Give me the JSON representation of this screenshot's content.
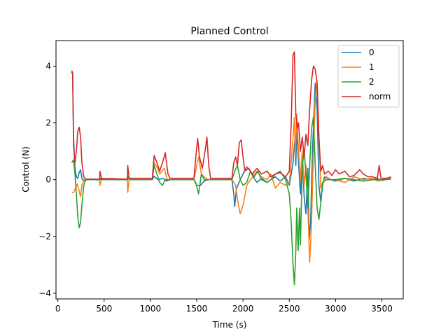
{
  "chart_data": {
    "type": "line",
    "title": "Planned Control",
    "xlabel": "Time (s)",
    "ylabel": "Control (N)",
    "xlim": [
      -20,
      3730
    ],
    "ylim": [
      -4.2,
      4.9
    ],
    "xticks": [
      0,
      500,
      1000,
      1500,
      2000,
      2500,
      3000,
      3500
    ],
    "yticks": [
      -4,
      -2,
      0,
      2,
      4
    ],
    "ytick_labels": [
      "−4",
      "−2",
      "0",
      "2",
      "4"
    ],
    "grid": false,
    "legend_position": "top-right",
    "series": [
      {
        "name": "0",
        "color": "#1f77b4",
        "points": [
          [
            150,
            3.8
          ],
          [
            160,
            3.7
          ],
          [
            170,
            1.5
          ],
          [
            185,
            0.4
          ],
          [
            200,
            0.1
          ],
          [
            215,
            0.05
          ],
          [
            230,
            0.25
          ],
          [
            245,
            0.35
          ],
          [
            260,
            0.05
          ],
          [
            280,
            -0.05
          ],
          [
            320,
            0.02
          ],
          [
            450,
            0.0
          ],
          [
            460,
            0.05
          ],
          [
            480,
            0.0
          ],
          [
            750,
            0.0
          ],
          [
            760,
            0.08
          ],
          [
            770,
            0.0
          ],
          [
            1020,
            0.0
          ],
          [
            1040,
            0.12
          ],
          [
            1080,
            0.0
          ],
          [
            1140,
            0.05
          ],
          [
            1170,
            -0.05
          ],
          [
            1210,
            0.0
          ],
          [
            1470,
            0.0
          ],
          [
            1500,
            -0.2
          ],
          [
            1540,
            -0.2
          ],
          [
            1580,
            -0.05
          ],
          [
            1620,
            0.0
          ],
          [
            1880,
            0.0
          ],
          [
            1900,
            -0.5
          ],
          [
            1910,
            -0.95
          ],
          [
            1930,
            -0.3
          ],
          [
            1970,
            0.0
          ],
          [
            2000,
            0.2
          ],
          [
            2040,
            0.45
          ],
          [
            2080,
            0.3
          ],
          [
            2110,
            0.1
          ],
          [
            2150,
            -0.1
          ],
          [
            2200,
            0.05
          ],
          [
            2260,
            -0.1
          ],
          [
            2300,
            0.0
          ],
          [
            2350,
            0.1
          ],
          [
            2400,
            -0.05
          ],
          [
            2460,
            0.1
          ],
          [
            2500,
            -0.2
          ],
          [
            2520,
            0.2
          ],
          [
            2540,
            0.6
          ],
          [
            2560,
            1.4
          ],
          [
            2570,
            0.5
          ],
          [
            2580,
            1.8
          ],
          [
            2600,
            0.6
          ],
          [
            2620,
            -0.5
          ],
          [
            2640,
            0.8
          ],
          [
            2660,
            -0.6
          ],
          [
            2680,
            -1.2
          ],
          [
            2700,
            0.4
          ],
          [
            2715,
            -2.1
          ],
          [
            2730,
            -1.5
          ],
          [
            2750,
            1.0
          ],
          [
            2780,
            3.4
          ],
          [
            2800,
            2.5
          ],
          [
            2820,
            -0.2
          ],
          [
            2840,
            -0.8
          ],
          [
            2860,
            -0.2
          ],
          [
            2880,
            0.1
          ],
          [
            2950,
            0.0
          ],
          [
            3000,
            -0.05
          ],
          [
            3100,
            0.05
          ],
          [
            3200,
            -0.05
          ],
          [
            3300,
            0.05
          ],
          [
            3400,
            0.0
          ],
          [
            3450,
            0.05
          ],
          [
            3500,
            -0.03
          ],
          [
            3600,
            0.05
          ]
        ]
      },
      {
        "name": "1",
        "color": "#ff7f0e",
        "points": [
          [
            150,
            -0.45
          ],
          [
            170,
            -0.45
          ],
          [
            190,
            -0.3
          ],
          [
            210,
            -0.15
          ],
          [
            230,
            -0.4
          ],
          [
            245,
            -0.6
          ],
          [
            260,
            -0.2
          ],
          [
            280,
            0.0
          ],
          [
            320,
            0.0
          ],
          [
            450,
            0.0
          ],
          [
            455,
            -0.2
          ],
          [
            470,
            0.0
          ],
          [
            750,
            0.0
          ],
          [
            755,
            -0.45
          ],
          [
            770,
            0.0
          ],
          [
            1020,
            0.0
          ],
          [
            1040,
            0.6
          ],
          [
            1070,
            0.45
          ],
          [
            1100,
            0.2
          ],
          [
            1150,
            0.4
          ],
          [
            1180,
            0.0
          ],
          [
            1210,
            0.0
          ],
          [
            1470,
            0.0
          ],
          [
            1490,
            0.35
          ],
          [
            1520,
            0.8
          ],
          [
            1550,
            0.2
          ],
          [
            1580,
            0.1
          ],
          [
            1620,
            0.0
          ],
          [
            1880,
            0.0
          ],
          [
            1920,
            -0.2
          ],
          [
            1950,
            -0.9
          ],
          [
            1970,
            -1.2
          ],
          [
            2000,
            -0.9
          ],
          [
            2040,
            -0.2
          ],
          [
            2080,
            0.0
          ],
          [
            2150,
            0.3
          ],
          [
            2200,
            0.1
          ],
          [
            2260,
            0.0
          ],
          [
            2300,
            0.2
          ],
          [
            2350,
            -0.3
          ],
          [
            2400,
            -0.1
          ],
          [
            2460,
            -0.2
          ],
          [
            2500,
            -0.1
          ],
          [
            2520,
            0.6
          ],
          [
            2540,
            1.5
          ],
          [
            2555,
            2.2
          ],
          [
            2565,
            0.8
          ],
          [
            2580,
            2.3
          ],
          [
            2600,
            1.0
          ],
          [
            2620,
            0.0
          ],
          [
            2640,
            1.0
          ],
          [
            2660,
            -0.2
          ],
          [
            2680,
            0.5
          ],
          [
            2700,
            -1.0
          ],
          [
            2720,
            -2.9
          ],
          [
            2740,
            -1.5
          ],
          [
            2760,
            1.0
          ],
          [
            2780,
            2.8
          ],
          [
            2800,
            3.5
          ],
          [
            2820,
            1.5
          ],
          [
            2840,
            -0.3
          ],
          [
            2860,
            -0.1
          ],
          [
            2900,
            0.1
          ],
          [
            2950,
            0.0
          ],
          [
            3000,
            0.0
          ],
          [
            3100,
            -0.1
          ],
          [
            3200,
            0.1
          ],
          [
            3300,
            0.0
          ],
          [
            3400,
            0.05
          ],
          [
            3450,
            -0.05
          ],
          [
            3500,
            0.0
          ],
          [
            3600,
            0.05
          ]
        ]
      },
      {
        "name": "2",
        "color": "#2ca02c",
        "points": [
          [
            150,
            0.6
          ],
          [
            170,
            0.7
          ],
          [
            185,
            0.2
          ],
          [
            200,
            -0.5
          ],
          [
            215,
            -1.3
          ],
          [
            230,
            -1.7
          ],
          [
            245,
            -1.5
          ],
          [
            260,
            -0.9
          ],
          [
            280,
            -0.2
          ],
          [
            300,
            0.0
          ],
          [
            450,
            0.0
          ],
          [
            460,
            0.02
          ],
          [
            480,
            0.0
          ],
          [
            750,
            0.0
          ],
          [
            760,
            0.1
          ],
          [
            770,
            0.0
          ],
          [
            1020,
            0.0
          ],
          [
            1040,
            0.5
          ],
          [
            1070,
            0.2
          ],
          [
            1100,
            -0.1
          ],
          [
            1130,
            -0.2
          ],
          [
            1160,
            0.0
          ],
          [
            1210,
            0.0
          ],
          [
            1470,
            0.0
          ],
          [
            1490,
            -0.1
          ],
          [
            1520,
            -0.5
          ],
          [
            1550,
            0.2
          ],
          [
            1580,
            0.0
          ],
          [
            1620,
            0.0
          ],
          [
            1880,
            0.0
          ],
          [
            1910,
            0.3
          ],
          [
            1940,
            0.5
          ],
          [
            1970,
            0.0
          ],
          [
            2000,
            -0.2
          ],
          [
            2040,
            -0.1
          ],
          [
            2080,
            0.3
          ],
          [
            2120,
            0.1
          ],
          [
            2160,
            0.3
          ],
          [
            2200,
            0.0
          ],
          [
            2260,
            -0.1
          ],
          [
            2300,
            0.0
          ],
          [
            2350,
            0.2
          ],
          [
            2400,
            0.3
          ],
          [
            2460,
            0.0
          ],
          [
            2500,
            -0.5
          ],
          [
            2520,
            -1.5
          ],
          [
            2540,
            -3.0
          ],
          [
            2555,
            -3.7
          ],
          [
            2570,
            -2.5
          ],
          [
            2580,
            -1.0
          ],
          [
            2595,
            -2.5
          ],
          [
            2610,
            -1.0
          ],
          [
            2620,
            -2.3
          ],
          [
            2640,
            0.5
          ],
          [
            2660,
            1.0
          ],
          [
            2680,
            0.2
          ],
          [
            2700,
            -1.0
          ],
          [
            2720,
            0.5
          ],
          [
            2740,
            1.8
          ],
          [
            2760,
            2.2
          ],
          [
            2780,
            0.5
          ],
          [
            2800,
            -1.0
          ],
          [
            2820,
            -1.4
          ],
          [
            2840,
            -0.8
          ],
          [
            2860,
            -0.1
          ],
          [
            2900,
            0.0
          ],
          [
            3000,
            0.0
          ],
          [
            3100,
            0.05
          ],
          [
            3200,
            0.0
          ],
          [
            3300,
            -0.05
          ],
          [
            3400,
            0.0
          ],
          [
            3500,
            0.0
          ],
          [
            3600,
            0.02
          ]
        ]
      },
      {
        "name": "norm",
        "color": "#d62728",
        "points": [
          [
            150,
            3.85
          ],
          [
            160,
            3.75
          ],
          [
            170,
            1.2
          ],
          [
            185,
            0.6
          ],
          [
            200,
            1.0
          ],
          [
            215,
            1.7
          ],
          [
            230,
            1.85
          ],
          [
            245,
            1.5
          ],
          [
            260,
            0.6
          ],
          [
            280,
            0.1
          ],
          [
            300,
            0.02
          ],
          [
            450,
            0.02
          ],
          [
            455,
            0.3
          ],
          [
            470,
            0.05
          ],
          [
            750,
            0.02
          ],
          [
            755,
            0.5
          ],
          [
            770,
            0.05
          ],
          [
            1020,
            0.05
          ],
          [
            1040,
            0.85
          ],
          [
            1070,
            0.6
          ],
          [
            1100,
            0.3
          ],
          [
            1130,
            0.6
          ],
          [
            1160,
            0.95
          ],
          [
            1190,
            0.2
          ],
          [
            1210,
            0.05
          ],
          [
            1470,
            0.05
          ],
          [
            1490,
            0.8
          ],
          [
            1510,
            1.45
          ],
          [
            1530,
            0.8
          ],
          [
            1560,
            0.4
          ],
          [
            1590,
            1.0
          ],
          [
            1610,
            1.5
          ],
          [
            1630,
            0.5
          ],
          [
            1650,
            0.05
          ],
          [
            1880,
            0.05
          ],
          [
            1900,
            0.6
          ],
          [
            1920,
            0.8
          ],
          [
            1940,
            0.5
          ],
          [
            1960,
            1.3
          ],
          [
            1980,
            1.4
          ],
          [
            2000,
            0.8
          ],
          [
            2020,
            0.3
          ],
          [
            2060,
            0.4
          ],
          [
            2100,
            0.2
          ],
          [
            2150,
            0.4
          ],
          [
            2200,
            0.2
          ],
          [
            2260,
            0.3
          ],
          [
            2300,
            0.1
          ],
          [
            2350,
            0.2
          ],
          [
            2400,
            0.25
          ],
          [
            2460,
            0.1
          ],
          [
            2500,
            0.3
          ],
          [
            2520,
            2.0
          ],
          [
            2540,
            4.4
          ],
          [
            2555,
            4.5
          ],
          [
            2570,
            2.3
          ],
          [
            2585,
            1.8
          ],
          [
            2600,
            2.0
          ],
          [
            2620,
            1.0
          ],
          [
            2640,
            1.5
          ],
          [
            2660,
            0.8
          ],
          [
            2680,
            1.6
          ],
          [
            2700,
            1.2
          ],
          [
            2720,
            2.5
          ],
          [
            2740,
            3.5
          ],
          [
            2760,
            4.0
          ],
          [
            2780,
            3.9
          ],
          [
            2800,
            3.4
          ],
          [
            2820,
            1.5
          ],
          [
            2840,
            0.3
          ],
          [
            2860,
            0.5
          ],
          [
            2880,
            0.2
          ],
          [
            2920,
            0.3
          ],
          [
            2960,
            0.15
          ],
          [
            3000,
            0.35
          ],
          [
            3040,
            0.2
          ],
          [
            3100,
            0.3
          ],
          [
            3150,
            0.1
          ],
          [
            3200,
            0.15
          ],
          [
            3260,
            0.35
          ],
          [
            3300,
            0.2
          ],
          [
            3350,
            0.1
          ],
          [
            3400,
            0.1
          ],
          [
            3450,
            0.05
          ],
          [
            3470,
            0.5
          ],
          [
            3490,
            0.05
          ],
          [
            3550,
            0.05
          ],
          [
            3600,
            0.1
          ]
        ]
      }
    ]
  }
}
